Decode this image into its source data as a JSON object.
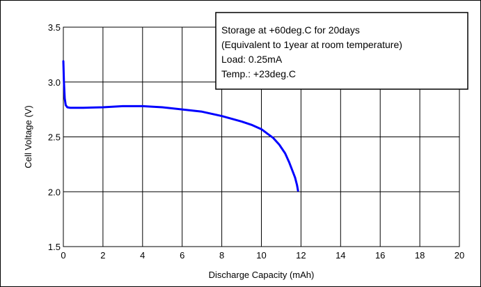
{
  "chart_data": {
    "type": "line",
    "title": "",
    "xlabel": "Discharge Capacity (mAh)",
    "ylabel": "Cell Voltage (V)",
    "xlim": [
      0,
      20
    ],
    "ylim": [
      1.5,
      3.5
    ],
    "x_ticks": [
      0,
      2,
      4,
      6,
      8,
      10,
      12,
      14,
      16,
      18,
      20
    ],
    "y_ticks": [
      1.5,
      2.0,
      2.5,
      3.0,
      3.5
    ],
    "x_tick_labels": [
      "0",
      "2",
      "4",
      "6",
      "8",
      "10",
      "12",
      "14",
      "16",
      "18",
      "20"
    ],
    "y_tick_labels": [
      "1.5",
      "2.0",
      "2.5",
      "3.0",
      "3.5"
    ],
    "grid": true,
    "line_color": "#0000ff",
    "annotation": [
      "Storage at +60deg.C for 20days",
      "(Equivalent to 1year at room temperature)",
      "Load: 0.25mA",
      "Temp.: +23deg.C"
    ],
    "series": [
      {
        "x": [
          0.0,
          0.03,
          0.07,
          0.12,
          0.2,
          0.35,
          0.5,
          1.0,
          2.0,
          3.0,
          4.0,
          5.0,
          6.0,
          7.0,
          8.0,
          9.0,
          9.5,
          10.0,
          10.3,
          10.6,
          10.9,
          11.2,
          11.4,
          11.55,
          11.7,
          11.8,
          11.85
        ],
        "y": [
          3.19,
          3.0,
          2.85,
          2.79,
          2.77,
          2.765,
          2.765,
          2.765,
          2.77,
          2.78,
          2.78,
          2.77,
          2.75,
          2.73,
          2.69,
          2.64,
          2.61,
          2.57,
          2.53,
          2.49,
          2.43,
          2.35,
          2.27,
          2.2,
          2.13,
          2.06,
          2.01
        ]
      }
    ]
  }
}
